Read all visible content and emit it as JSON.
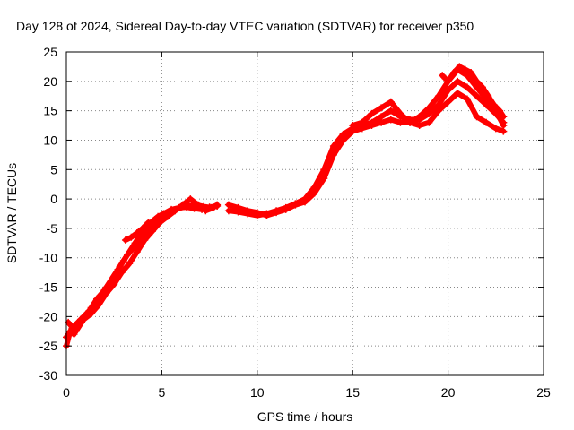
{
  "chart_data": {
    "type": "scatter",
    "title": "Day 128 of 2024, Sidereal Day-to-day VTEC variation (SDTVAR) for receiver p350",
    "xlabel": "GPS time / hours",
    "ylabel": "SDTVAR / TECUs",
    "xlim": [
      0,
      25
    ],
    "ylim": [
      -30,
      25
    ],
    "xticks": [
      0,
      5,
      10,
      15,
      20,
      25
    ],
    "yticks": [
      -30,
      -25,
      -20,
      -15,
      -10,
      -5,
      0,
      5,
      10,
      15,
      20,
      25
    ],
    "grid": true,
    "legend": "none",
    "marker_color": "#ff0000",
    "series": [
      {
        "x": [
          0.0,
          0.2,
          0.4,
          0.6,
          0.8,
          1.0,
          1.3,
          1.6,
          2.0,
          2.4,
          2.8,
          3.2,
          3.6,
          4.0,
          4.4,
          4.8,
          5.2,
          5.6,
          6.0,
          6.4,
          6.8,
          7.2,
          7.6,
          7.9
        ],
        "y": [
          -25.0,
          -22.5,
          -23.0,
          -21.5,
          -21.0,
          -20.0,
          -18.5,
          -17.0,
          -15.5,
          -13.5,
          -11.5,
          -9.5,
          -8.0,
          -6.5,
          -5.0,
          -3.5,
          -2.5,
          -2.0,
          -1.5,
          -1.2,
          -1.0,
          -1.3,
          -1.5,
          -1.0
        ]
      },
      {
        "x": [
          0.0,
          0.3,
          0.6,
          0.9,
          1.2,
          1.5,
          1.8,
          2.1,
          2.4,
          2.7,
          3.0,
          3.3,
          3.6,
          3.9,
          4.2,
          4.5,
          4.8,
          5.1,
          5.5,
          5.9,
          6.3,
          6.7,
          7.1,
          7.5,
          7.9
        ],
        "y": [
          -23.5,
          -22.0,
          -21.0,
          -20.0,
          -19.0,
          -18.0,
          -16.5,
          -15.0,
          -13.5,
          -12.0,
          -10.5,
          -9.0,
          -7.5,
          -6.0,
          -4.8,
          -3.8,
          -3.0,
          -2.5,
          -1.8,
          -1.5,
          -1.4,
          -1.6,
          -1.8,
          -1.4,
          -1.2
        ]
      },
      {
        "x": [
          0.1,
          0.5,
          0.9,
          1.3,
          1.7,
          2.1,
          2.5,
          2.9,
          3.3,
          3.7,
          4.1,
          4.5,
          4.9,
          5.3,
          5.7,
          6.1,
          6.5,
          6.9,
          7.3,
          7.7
        ],
        "y": [
          -21.0,
          -22.5,
          -20.5,
          -19.5,
          -18.0,
          -16.0,
          -14.5,
          -12.5,
          -11.0,
          -9.0,
          -7.0,
          -5.5,
          -4.0,
          -3.0,
          -2.0,
          -1.0,
          0.0,
          -1.0,
          -2.0,
          -1.5
        ]
      },
      {
        "x": [
          3.1,
          3.4,
          3.7,
          4.0,
          4.3
        ],
        "y": [
          -7.0,
          -6.5,
          -5.8,
          -5.0,
          -4.0
        ]
      },
      {
        "x": [
          8.5,
          9.0,
          9.5,
          10.0,
          10.5,
          11.0,
          11.5,
          12.0,
          12.5,
          13.0,
          13.5,
          14.0,
          14.5,
          15.0,
          15.5,
          16.0,
          16.5,
          17.0,
          17.5,
          18.0,
          18.5,
          19.0,
          19.5,
          20.0,
          20.5,
          21.0,
          21.5,
          22.0,
          22.5,
          22.9
        ],
        "y": [
          -2.0,
          -2.2,
          -2.5,
          -2.8,
          -2.5,
          -2.0,
          -1.5,
          -0.8,
          0.0,
          2.0,
          5.0,
          9.0,
          11.0,
          12.0,
          12.5,
          13.0,
          14.0,
          15.0,
          14.0,
          13.5,
          13.5,
          14.5,
          16.0,
          18.5,
          20.0,
          19.0,
          17.5,
          16.0,
          14.5,
          13.0
        ]
      },
      {
        "x": [
          8.5,
          9.0,
          9.5,
          10.0,
          10.5,
          11.0,
          11.5,
          12.0,
          12.5,
          13.0,
          13.5,
          14.0,
          14.5,
          15.0,
          15.5,
          16.0,
          16.5,
          17.0,
          17.5,
          18.0,
          18.5,
          19.0,
          19.5,
          20.0,
          20.5,
          21.0,
          21.5,
          22.0,
          22.5,
          22.9
        ],
        "y": [
          -1.0,
          -1.5,
          -2.0,
          -2.3,
          -2.8,
          -2.3,
          -1.8,
          -1.0,
          -0.5,
          1.0,
          3.5,
          7.5,
          10.0,
          11.5,
          12.0,
          12.5,
          13.0,
          13.5,
          13.0,
          13.0,
          14.0,
          15.5,
          17.5,
          20.0,
          22.0,
          21.0,
          19.0,
          17.0,
          15.0,
          12.5
        ]
      },
      {
        "x": [
          15.0,
          15.5,
          16.0,
          16.5,
          17.0,
          17.5,
          18.0,
          18.5,
          19.0,
          19.5,
          20.0,
          20.5,
          21.0,
          21.5,
          22.0,
          22.5,
          22.9
        ],
        "y": [
          12.5,
          13.0,
          14.5,
          15.5,
          16.5,
          14.5,
          13.0,
          12.5,
          13.0,
          15.0,
          16.5,
          18.0,
          17.0,
          14.0,
          13.0,
          12.0,
          11.5
        ]
      },
      {
        "x": [
          19.7,
          20.0,
          20.3,
          20.6,
          20.9,
          21.2,
          21.5,
          21.8,
          22.1,
          22.4,
          22.7,
          22.9
        ],
        "y": [
          21.0,
          20.0,
          21.5,
          22.5,
          22.0,
          21.5,
          20.0,
          19.0,
          17.5,
          16.0,
          15.0,
          14.0
        ]
      }
    ]
  }
}
